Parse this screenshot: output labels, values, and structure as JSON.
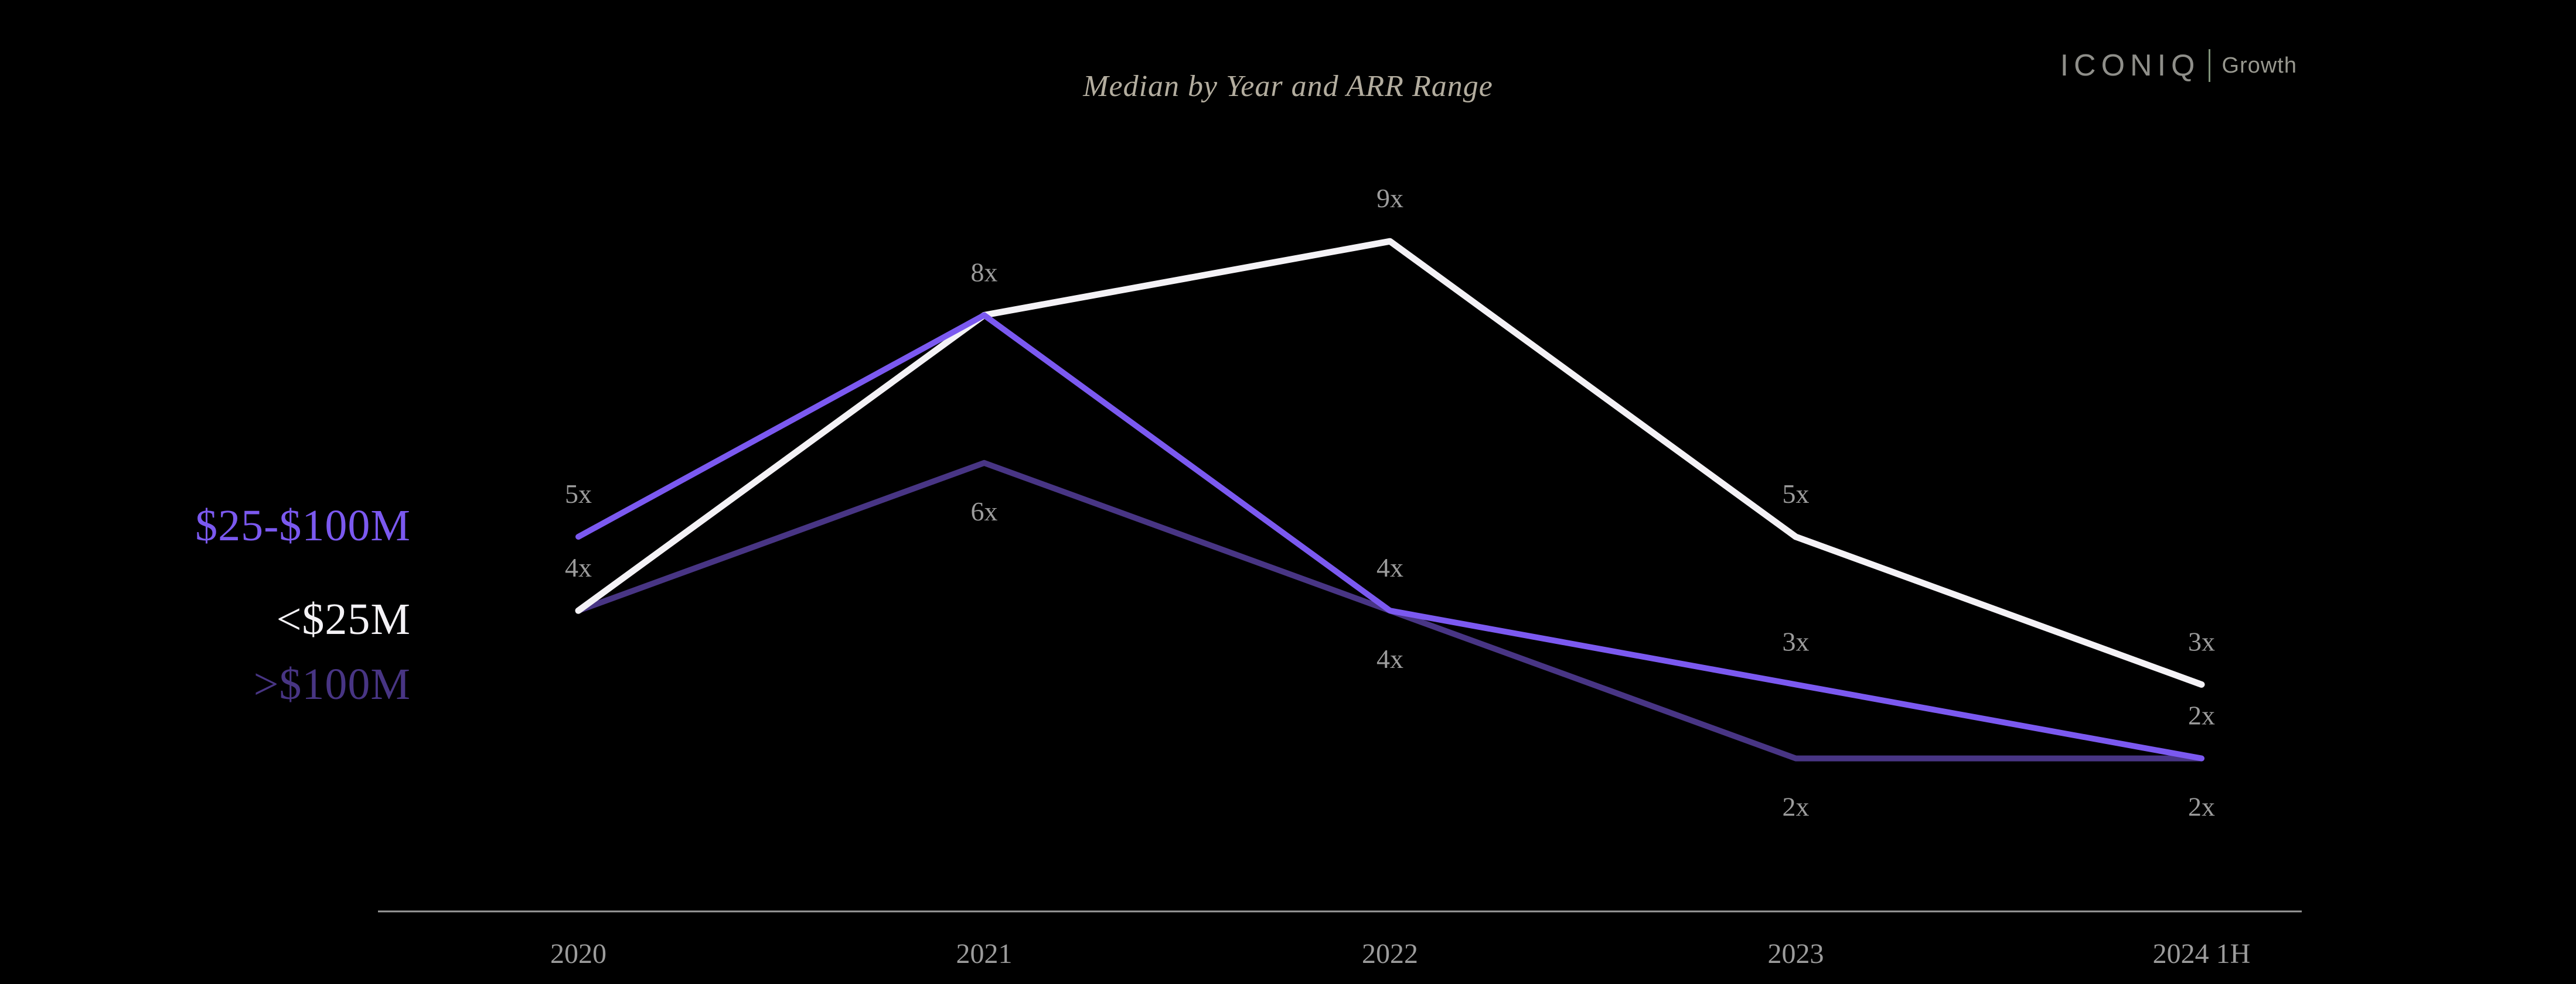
{
  "logo": {
    "brand": "ICONIQ",
    "sub": "Growth"
  },
  "chart_data": {
    "type": "line",
    "title": "Median by Year and ARR Range",
    "categories": [
      "2020",
      "2021",
      "2022",
      "2023",
      "2024 1H"
    ],
    "series": [
      {
        "name": "<$25M",
        "color": "#f4f2f6",
        "values": [
          4,
          8,
          9,
          5,
          3
        ],
        "point_labels": [
          "4x",
          "8x",
          "9x",
          "5x",
          "3x"
        ],
        "show_labels": [
          true,
          true,
          true,
          true,
          true
        ],
        "label_side": "above"
      },
      {
        "name": "$25-$100M",
        "color": "#7b59f0",
        "values": [
          5,
          8,
          4,
          3,
          2
        ],
        "point_labels": [
          "5x",
          "8x",
          "4x",
          "3x",
          "2x"
        ],
        "show_labels": [
          true,
          false,
          true,
          true,
          true
        ],
        "label_side": "above"
      },
      {
        "name": ">$100M",
        "color": "#483584",
        "values": [
          4,
          6,
          4,
          2,
          2
        ],
        "point_labels": [
          "4x",
          "6x",
          "4x",
          "2x",
          "2x"
        ],
        "show_labels": [
          false,
          true,
          true,
          true,
          true
        ],
        "label_side": "below"
      }
    ],
    "ylim": [
      0,
      10
    ],
    "grid": false,
    "legend_position": "left",
    "xlabel": "",
    "ylabel": "",
    "label_color": "#9c9c9c",
    "axis_color": "#9a9a9a"
  }
}
